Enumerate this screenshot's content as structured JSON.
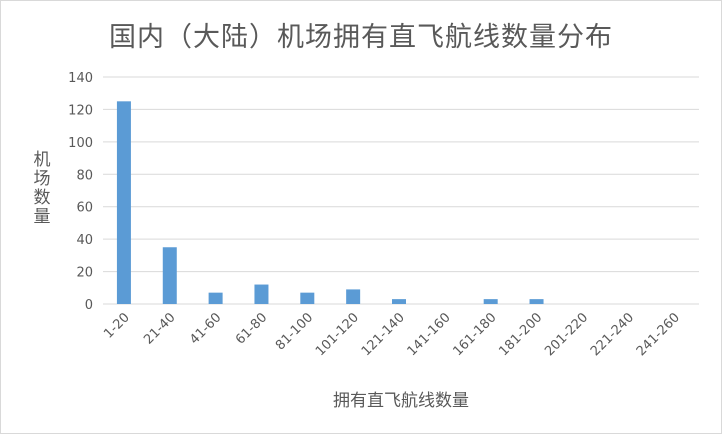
{
  "chart_data": {
    "type": "bar",
    "title": "国内（大陆）机场拥有直飞航线数量分布",
    "xlabel": "拥有直飞航线数量",
    "ylabel": "机场数量",
    "categories": [
      "1-20",
      "21-40",
      "41-60",
      "61-80",
      "81-100",
      "101-120",
      "121-140",
      "141-160",
      "161-180",
      "181-200",
      "201-220",
      "221-240",
      "241-260"
    ],
    "values": [
      125,
      35,
      7,
      12,
      7,
      9,
      3,
      0,
      3,
      3,
      0,
      0,
      0
    ],
    "ylim": [
      0,
      140
    ],
    "yticks": [
      "0",
      "20",
      "40",
      "60",
      "80",
      "100",
      "120",
      "140"
    ],
    "grid": true,
    "bar_color": "#5b9bd5",
    "grid_color": "#d9d9d9"
  }
}
